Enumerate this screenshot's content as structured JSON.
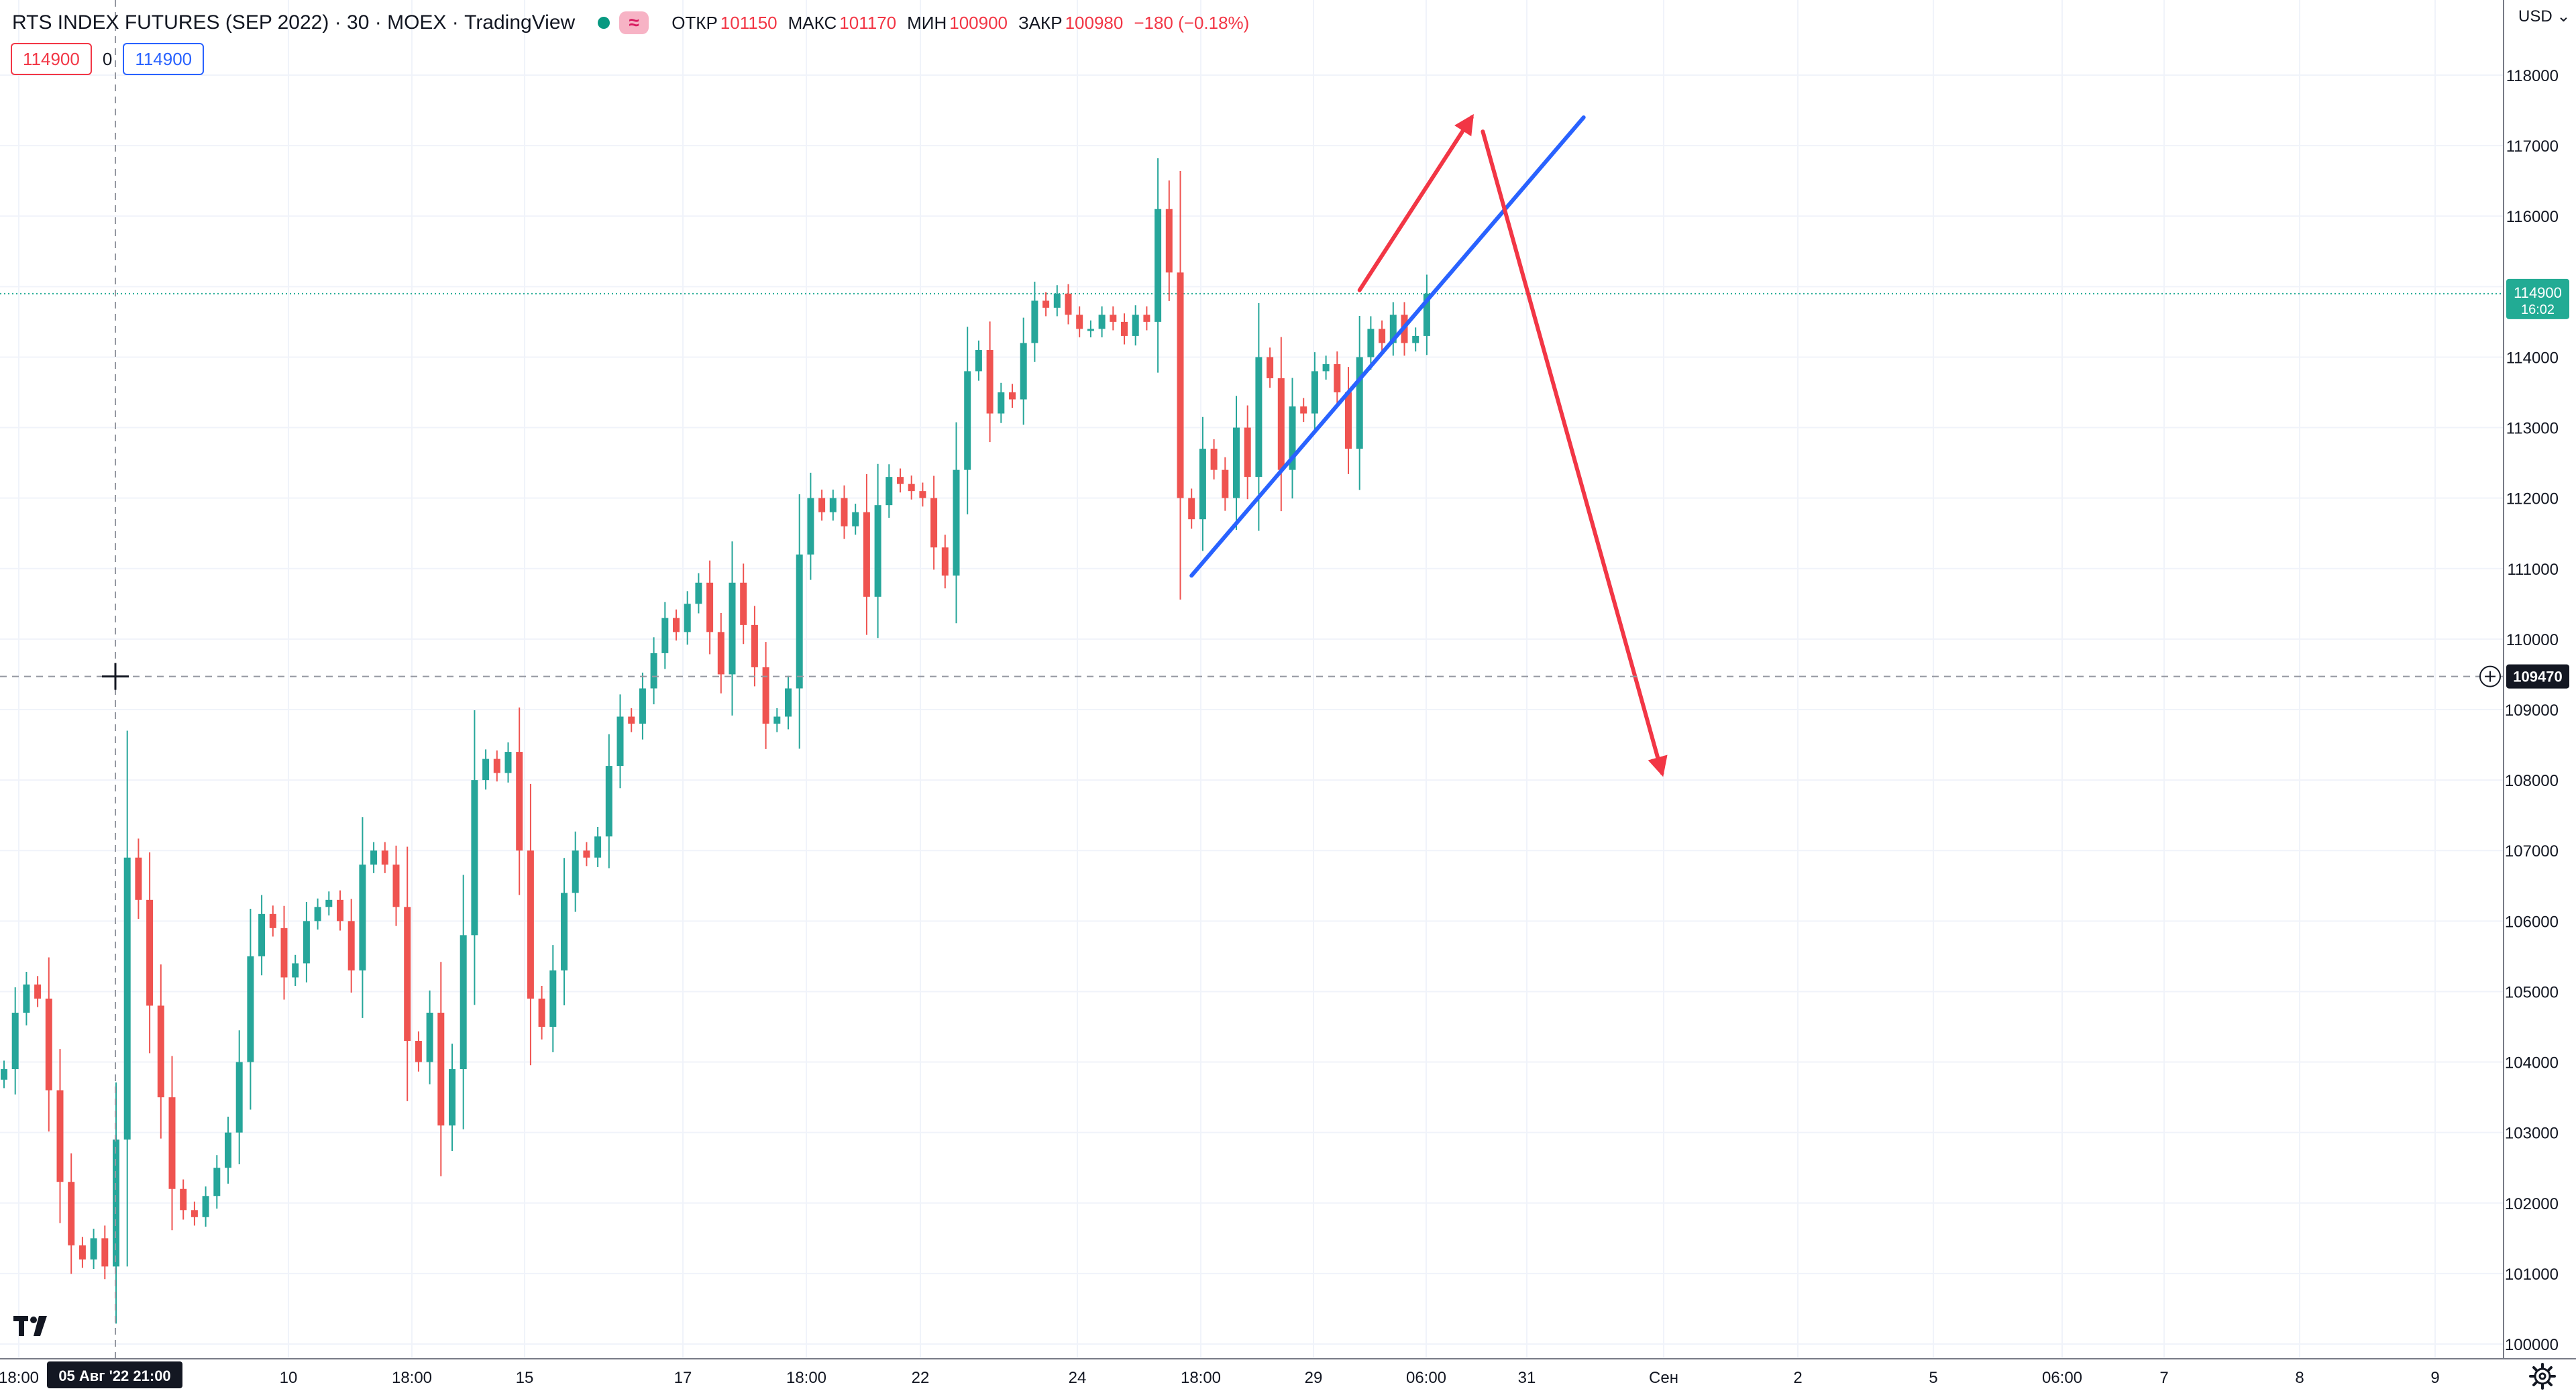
{
  "header": {
    "symbol": "RTS INDEX FUTURES (SEP 2022)",
    "interval": "30",
    "exchange": "MOEX",
    "source": "TradingView",
    "badge": "≈",
    "ohlc": {
      "open_label": "ОТКР",
      "open": "101150",
      "high_label": "МАКС",
      "high": "101170",
      "low_label": "МИН",
      "low": "100900",
      "close_label": "ЗАКР",
      "close": "100980",
      "change": "−180 (−0.18%)"
    }
  },
  "indicator_inputs": {
    "value_1": "114900",
    "zero": "0",
    "value_2": "114900"
  },
  "currency": "USD",
  "colors": {
    "up": "#26a69a",
    "down": "#ef5350",
    "blue_line": "#2962ff",
    "red_line": "#f23645",
    "price_label": "#22ab94"
  },
  "icons": {
    "logo": "tradingview-logo-icon",
    "settings": "gear-icon",
    "add": "plus-circle-icon"
  },
  "chart_data": {
    "type": "candlestick",
    "ylim": [
      100000,
      118000
    ],
    "y_ticks": [
      "100000",
      "101000",
      "102000",
      "103000",
      "104000",
      "105000",
      "106000",
      "107000",
      "108000",
      "109000",
      "110000",
      "111000",
      "112000",
      "113000",
      "114000",
      "115000",
      "116000",
      "117000",
      "118000"
    ],
    "x_ticks": [
      "18:00",
      "10",
      "18:00",
      "15",
      "17",
      "18:00",
      "22",
      "24",
      "18:00",
      "29",
      "06:00",
      "31",
      "Сен",
      "2",
      "5",
      "06:00",
      "7",
      "8",
      "9"
    ],
    "crosshair_date": "05 Авг '22   21:00",
    "crosshair_price": "109470",
    "last_price": "114900",
    "last_price_timer": "16:02",
    "series": [
      {
        "name": "",
        "close": [
          103900,
          104700,
          105100,
          104900,
          103600,
          102300,
          101400,
          101200,
          101500,
          101100,
          102900,
          106900,
          106300,
          104800,
          103500,
          102200,
          101900,
          101800,
          102100,
          102500,
          103000,
          104000,
          105500,
          106100,
          105900,
          105200,
          105400,
          106000,
          106200,
          106300,
          106000,
          105300,
          106800,
          107000,
          106800,
          106200,
          104300,
          104000,
          104700,
          103100,
          103900,
          105800,
          108000,
          108300,
          108100,
          108400,
          107000,
          104900,
          104500,
          105300,
          106400,
          107000,
          106900,
          107200,
          108200,
          108900,
          108800,
          109300,
          109800,
          110300,
          110100,
          110500,
          110800,
          110100,
          109500,
          110800,
          110200,
          109600,
          108800,
          108900,
          109300,
          111200,
          112000,
          111800,
          112000,
          111600,
          111800,
          110600,
          111900,
          112300,
          112200,
          112100,
          112000,
          111300,
          110900,
          112400,
          113800,
          114100,
          113200,
          113500,
          113400,
          114200,
          114800,
          114700,
          114900,
          114600,
          114400,
          114400,
          114600,
          114500,
          114300,
          114600,
          114500,
          116100,
          115200,
          112000,
          111700,
          112700,
          112400,
          112000,
          113000,
          112300,
          114000,
          113700,
          112400,
          113300,
          113200,
          113800,
          113900,
          113500,
          112700,
          114000,
          114400,
          114200,
          114600,
          114200,
          114300,
          114900
        ]
      }
    ],
    "drawings": [
      {
        "type": "trend-line",
        "color": "blue",
        "from": {
          "bar": 106,
          "price": 110900
        },
        "to": {
          "bar": 141,
          "price": 117400
        }
      },
      {
        "type": "arrow",
        "color": "red",
        "from": {
          "bar": 121,
          "price": 114950
        },
        "to": {
          "bar": 131,
          "price": 117400
        }
      },
      {
        "type": "arrow",
        "color": "red",
        "from": {
          "bar": 132,
          "price": 117200
        },
        "to": {
          "bar": 148,
          "price": 108100
        }
      }
    ]
  }
}
